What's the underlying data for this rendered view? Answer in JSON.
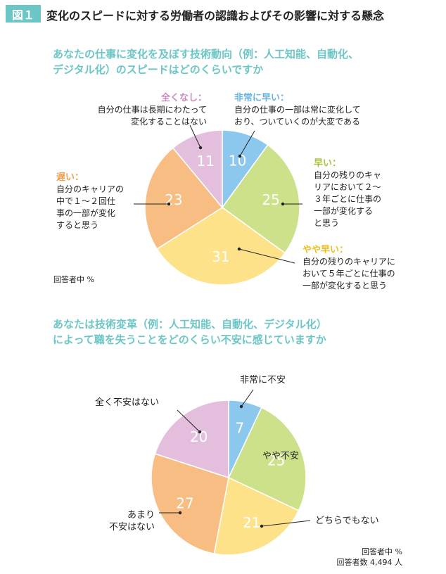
{
  "figure": {
    "badge": "図１",
    "title": "変化のスピードに対する労働者の認識およびその影響に対する懸念"
  },
  "chart_data": [
    {
      "type": "pie",
      "title_lines": [
        "あなたの仕事に変化を及ぼす技術動向（例：人工知能、自動化、",
        "デジタル化）のスピードはどのくらいですか"
      ],
      "unit_note": "回答者中 %",
      "slices": [
        {
          "heading": "非常に早い：",
          "desc": [
            "自分の仕事の一部は常に変化して",
            "おり、ついていくのが大変である"
          ],
          "value": 10,
          "color": "#8cc8ee",
          "label_color": "#6ab3e0"
        },
        {
          "heading": "早い：",
          "desc": [
            "自分の残りのキャ",
            "リアにおいて２～",
            "３年ごとに仕事の",
            "一部が変化する",
            "と思う"
          ],
          "value": 25,
          "color": "#cde08a",
          "label_color": "#a8c23c"
        },
        {
          "heading": "やや早い：",
          "desc": [
            "自分の残りのキャリアに",
            "おいて５年ごとに仕事の",
            "一部が変化すると思う"
          ],
          "value": 31,
          "color": "#fde28a",
          "label_color": "#f0be1e"
        },
        {
          "heading": "遅い：",
          "desc": [
            "自分のキャリアの",
            "中で１～２回仕",
            "事の一部が変化",
            "すると思う"
          ],
          "value": 23,
          "color": "#f8bd82",
          "label_color": "#f0a050"
        },
        {
          "heading": "全くなし：",
          "desc": [
            "自分の仕事は長期にわたって",
            "変化することはない"
          ],
          "value": 11,
          "color": "#e3bedd",
          "label_color": "#c98ac0"
        }
      ]
    },
    {
      "type": "pie",
      "title_lines": [
        "あなたは技術変革（例：人工知能、自動化、デジタル化）",
        "によって職を失うことをどのくらい不安に感じていますか"
      ],
      "unit_note": "回答者中 %",
      "respondents_note": "回答者数 4,494 人",
      "slices": [
        {
          "label": [
            "非常に不安"
          ],
          "value": 7,
          "color": "#8cc8ee"
        },
        {
          "label": [
            "やや不安"
          ],
          "value": 25,
          "color": "#cde08a"
        },
        {
          "label": [
            "どちらでもない"
          ],
          "value": 21,
          "color": "#fde28a"
        },
        {
          "label": [
            "あまり",
            "不安はない"
          ],
          "value": 27,
          "color": "#f8bd82"
        },
        {
          "label": [
            "全く不安はない"
          ],
          "value": 20,
          "color": "#e3bedd"
        }
      ]
    }
  ]
}
